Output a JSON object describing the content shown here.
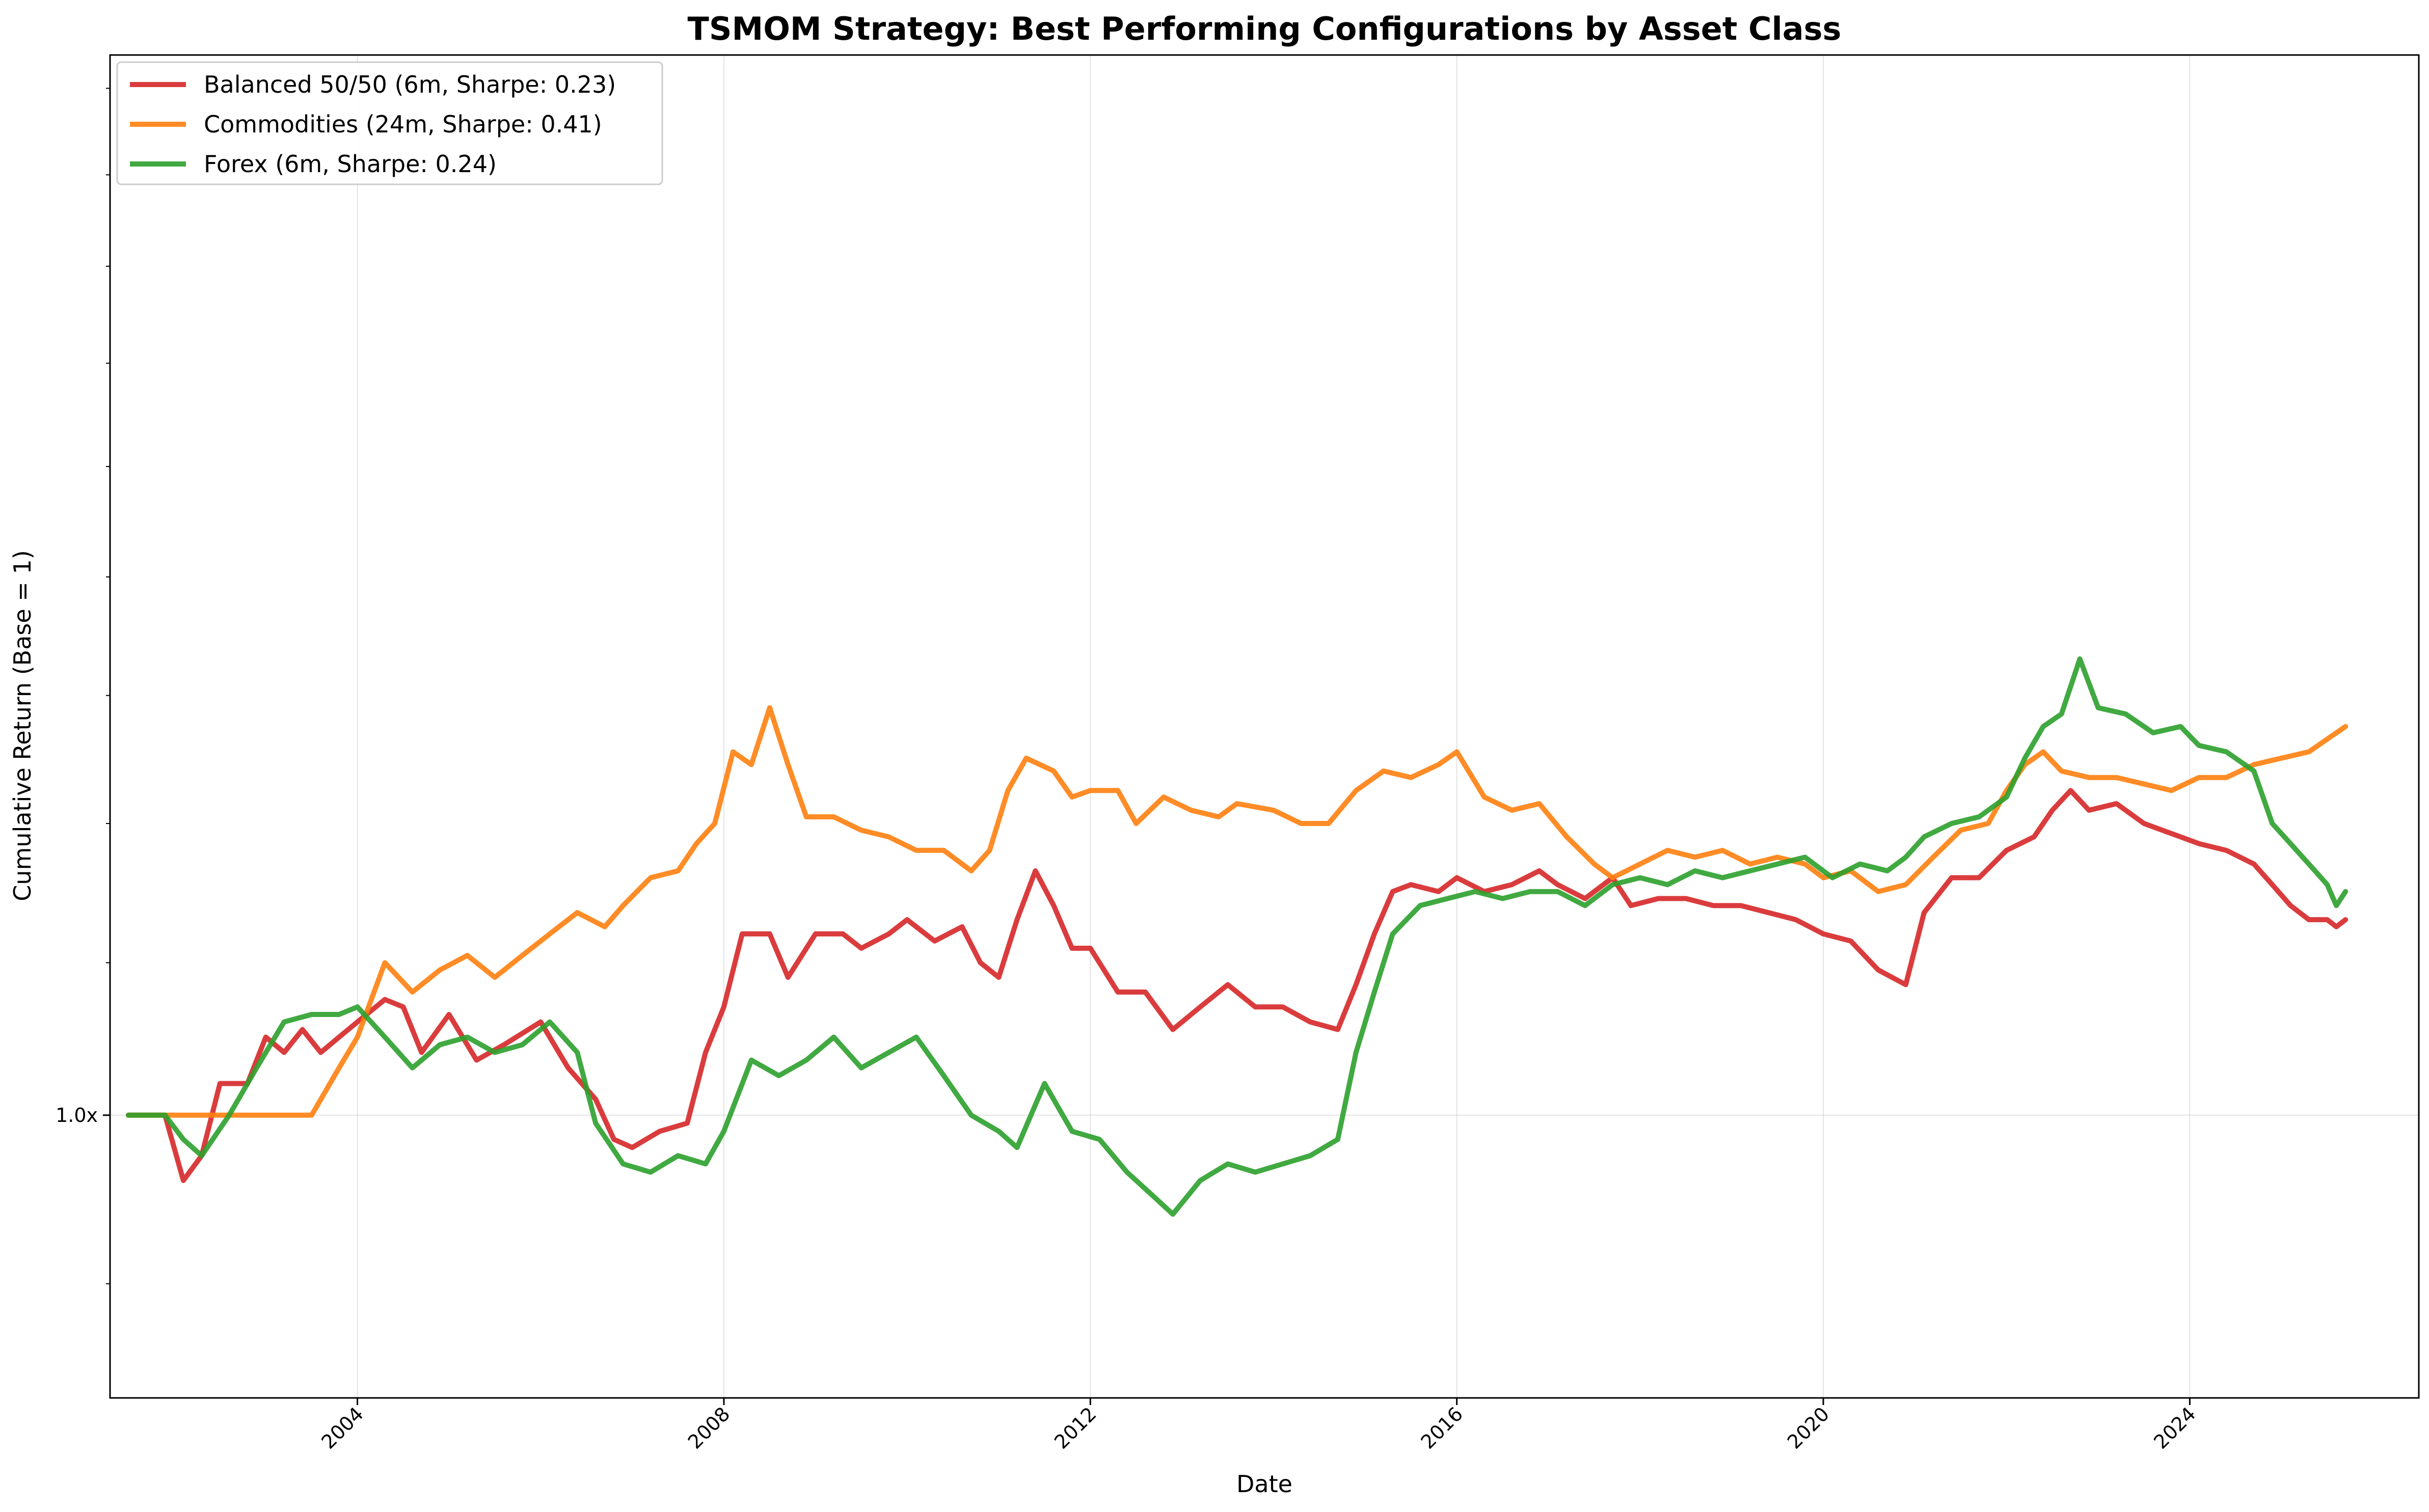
{
  "chart_data": {
    "type": "line",
    "title": "TSMOM Strategy: Best Performing Configurations by Asset Class",
    "xlabel": "Date",
    "ylabel": "Cumulative Return (Base = 1)",
    "y_scale": "log",
    "ylim": [
      0.838,
      1.94
    ],
    "xlim": [
      2001.3,
      2026.5
    ],
    "x_ticks": [
      2004,
      2008,
      2012,
      2016,
      2020,
      2024
    ],
    "x_tick_labels": [
      "2004",
      "2008",
      "2012",
      "2016",
      "2020",
      "2024"
    ],
    "y_tick_labels": [
      "1.0x"
    ],
    "grid": true,
    "legend_position": "top-left",
    "series": [
      {
        "name": "Balanced 50/50 (6m, Sharpe: 0.23)",
        "color": "#d62728",
        "points": [
          [
            2001.5,
            1.0
          ],
          [
            2001.9,
            1.0
          ],
          [
            2002.1,
            0.96
          ],
          [
            2002.3,
            0.975
          ],
          [
            2002.5,
            1.02
          ],
          [
            2002.8,
            1.02
          ],
          [
            2003.0,
            1.05
          ],
          [
            2003.2,
            1.04
          ],
          [
            2003.4,
            1.055
          ],
          [
            2003.6,
            1.04
          ],
          [
            2003.8,
            1.05
          ],
          [
            2004.0,
            1.06
          ],
          [
            2004.3,
            1.075
          ],
          [
            2004.5,
            1.07
          ],
          [
            2004.7,
            1.04
          ],
          [
            2005.0,
            1.065
          ],
          [
            2005.3,
            1.035
          ],
          [
            2005.6,
            1.045
          ],
          [
            2006.0,
            1.06
          ],
          [
            2006.3,
            1.03
          ],
          [
            2006.6,
            1.01
          ],
          [
            2006.8,
            0.985
          ],
          [
            2007.0,
            0.98
          ],
          [
            2007.3,
            0.99
          ],
          [
            2007.6,
            0.995
          ],
          [
            2007.8,
            1.04
          ],
          [
            2008.0,
            1.07
          ],
          [
            2008.2,
            1.12
          ],
          [
            2008.5,
            1.12
          ],
          [
            2008.7,
            1.09
          ],
          [
            2009.0,
            1.12
          ],
          [
            2009.3,
            1.12
          ],
          [
            2009.5,
            1.11
          ],
          [
            2009.8,
            1.12
          ],
          [
            2010.0,
            1.13
          ],
          [
            2010.3,
            1.115
          ],
          [
            2010.6,
            1.125
          ],
          [
            2010.8,
            1.1
          ],
          [
            2011.0,
            1.09
          ],
          [
            2011.2,
            1.13
          ],
          [
            2011.4,
            1.165
          ],
          [
            2011.6,
            1.14
          ],
          [
            2011.8,
            1.11
          ],
          [
            2012.0,
            1.11
          ],
          [
            2012.3,
            1.08
          ],
          [
            2012.6,
            1.08
          ],
          [
            2012.9,
            1.055
          ],
          [
            2013.2,
            1.07
          ],
          [
            2013.5,
            1.085
          ],
          [
            2013.8,
            1.07
          ],
          [
            2014.1,
            1.07
          ],
          [
            2014.4,
            1.06
          ],
          [
            2014.7,
            1.055
          ],
          [
            2014.9,
            1.085
          ],
          [
            2015.1,
            1.12
          ],
          [
            2015.3,
            1.15
          ],
          [
            2015.5,
            1.155
          ],
          [
            2015.8,
            1.15
          ],
          [
            2016.0,
            1.16
          ],
          [
            2016.3,
            1.15
          ],
          [
            2016.6,
            1.155
          ],
          [
            2016.9,
            1.165
          ],
          [
            2017.1,
            1.155
          ],
          [
            2017.4,
            1.145
          ],
          [
            2017.7,
            1.16
          ],
          [
            2017.9,
            1.14
          ],
          [
            2018.2,
            1.145
          ],
          [
            2018.5,
            1.145
          ],
          [
            2018.8,
            1.14
          ],
          [
            2019.1,
            1.14
          ],
          [
            2019.4,
            1.135
          ],
          [
            2019.7,
            1.13
          ],
          [
            2020.0,
            1.12
          ],
          [
            2020.3,
            1.115
          ],
          [
            2020.6,
            1.095
          ],
          [
            2020.9,
            1.085
          ],
          [
            2021.1,
            1.135
          ],
          [
            2021.4,
            1.16
          ],
          [
            2021.7,
            1.16
          ],
          [
            2022.0,
            1.18
          ],
          [
            2022.3,
            1.19
          ],
          [
            2022.5,
            1.21
          ],
          [
            2022.7,
            1.225
          ],
          [
            2022.9,
            1.21
          ],
          [
            2023.2,
            1.215
          ],
          [
            2023.5,
            1.2
          ],
          [
            2023.7,
            1.195
          ],
          [
            2023.9,
            1.19
          ],
          [
            2024.1,
            1.185
          ],
          [
            2024.4,
            1.18
          ],
          [
            2024.7,
            1.17
          ],
          [
            2024.9,
            1.155
          ],
          [
            2025.1,
            1.14
          ],
          [
            2025.3,
            1.13
          ],
          [
            2025.5,
            1.13
          ],
          [
            2025.6,
            1.125
          ],
          [
            2025.7,
            1.13
          ]
        ]
      },
      {
        "name": "Commodities (24m, Sharpe: 0.41)",
        "color": "#ff7f0e",
        "points": [
          [
            2001.5,
            1.0
          ],
          [
            2003.5,
            1.0
          ],
          [
            2003.8,
            1.03
          ],
          [
            2004.0,
            1.05
          ],
          [
            2004.3,
            1.1
          ],
          [
            2004.6,
            1.08
          ],
          [
            2004.9,
            1.095
          ],
          [
            2005.2,
            1.105
          ],
          [
            2005.5,
            1.09
          ],
          [
            2005.8,
            1.105
          ],
          [
            2006.1,
            1.12
          ],
          [
            2006.4,
            1.135
          ],
          [
            2006.7,
            1.125
          ],
          [
            2006.9,
            1.14
          ],
          [
            2007.2,
            1.16
          ],
          [
            2007.5,
            1.165
          ],
          [
            2007.7,
            1.185
          ],
          [
            2007.9,
            1.2
          ],
          [
            2008.1,
            1.255
          ],
          [
            2008.3,
            1.245
          ],
          [
            2008.5,
            1.29
          ],
          [
            2008.7,
            1.245
          ],
          [
            2008.9,
            1.205
          ],
          [
            2009.2,
            1.205
          ],
          [
            2009.5,
            1.195
          ],
          [
            2009.8,
            1.19
          ],
          [
            2010.1,
            1.18
          ],
          [
            2010.4,
            1.18
          ],
          [
            2010.7,
            1.165
          ],
          [
            2010.9,
            1.18
          ],
          [
            2011.1,
            1.225
          ],
          [
            2011.3,
            1.25
          ],
          [
            2011.6,
            1.24
          ],
          [
            2011.8,
            1.22
          ],
          [
            2012.0,
            1.225
          ],
          [
            2012.3,
            1.225
          ],
          [
            2012.5,
            1.2
          ],
          [
            2012.8,
            1.22
          ],
          [
            2013.1,
            1.21
          ],
          [
            2013.4,
            1.205
          ],
          [
            2013.6,
            1.215
          ],
          [
            2014.0,
            1.21
          ],
          [
            2014.3,
            1.2
          ],
          [
            2014.6,
            1.2
          ],
          [
            2014.9,
            1.225
          ],
          [
            2015.2,
            1.24
          ],
          [
            2015.5,
            1.235
          ],
          [
            2015.8,
            1.245
          ],
          [
            2016.0,
            1.255
          ],
          [
            2016.3,
            1.22
          ],
          [
            2016.6,
            1.21
          ],
          [
            2016.9,
            1.215
          ],
          [
            2017.2,
            1.19
          ],
          [
            2017.5,
            1.17
          ],
          [
            2017.7,
            1.16
          ],
          [
            2018.0,
            1.17
          ],
          [
            2018.3,
            1.18
          ],
          [
            2018.6,
            1.175
          ],
          [
            2018.9,
            1.18
          ],
          [
            2019.2,
            1.17
          ],
          [
            2019.5,
            1.175
          ],
          [
            2019.8,
            1.17
          ],
          [
            2020.0,
            1.16
          ],
          [
            2020.3,
            1.165
          ],
          [
            2020.6,
            1.15
          ],
          [
            2020.9,
            1.155
          ],
          [
            2021.2,
            1.175
          ],
          [
            2021.5,
            1.195
          ],
          [
            2021.8,
            1.2
          ],
          [
            2022.0,
            1.225
          ],
          [
            2022.2,
            1.245
          ],
          [
            2022.4,
            1.255
          ],
          [
            2022.6,
            1.24
          ],
          [
            2022.9,
            1.235
          ],
          [
            2023.2,
            1.235
          ],
          [
            2023.5,
            1.23
          ],
          [
            2023.8,
            1.225
          ],
          [
            2024.1,
            1.235
          ],
          [
            2024.4,
            1.235
          ],
          [
            2024.7,
            1.245
          ],
          [
            2025.0,
            1.25
          ],
          [
            2025.3,
            1.255
          ],
          [
            2025.5,
            1.265
          ],
          [
            2025.7,
            1.275
          ]
        ]
      },
      {
        "name": "Forex (6m, Sharpe: 0.24)",
        "color": "#2ca02c",
        "points": [
          [
            2001.5,
            1.0
          ],
          [
            2001.9,
            1.0
          ],
          [
            2002.1,
            0.985
          ],
          [
            2002.3,
            0.975
          ],
          [
            2002.6,
            1.0
          ],
          [
            2002.9,
            1.03
          ],
          [
            2003.2,
            1.06
          ],
          [
            2003.5,
            1.065
          ],
          [
            2003.8,
            1.065
          ],
          [
            2004.0,
            1.07
          ],
          [
            2004.3,
            1.05
          ],
          [
            2004.6,
            1.03
          ],
          [
            2004.9,
            1.045
          ],
          [
            2005.2,
            1.05
          ],
          [
            2005.5,
            1.04
          ],
          [
            2005.8,
            1.045
          ],
          [
            2006.1,
            1.06
          ],
          [
            2006.4,
            1.04
          ],
          [
            2006.6,
            0.995
          ],
          [
            2006.9,
            0.97
          ],
          [
            2007.2,
            0.965
          ],
          [
            2007.5,
            0.975
          ],
          [
            2007.8,
            0.97
          ],
          [
            2008.0,
            0.99
          ],
          [
            2008.3,
            1.035
          ],
          [
            2008.6,
            1.025
          ],
          [
            2008.9,
            1.035
          ],
          [
            2009.2,
            1.05
          ],
          [
            2009.5,
            1.03
          ],
          [
            2009.8,
            1.04
          ],
          [
            2010.1,
            1.05
          ],
          [
            2010.4,
            1.025
          ],
          [
            2010.7,
            1.0
          ],
          [
            2011.0,
            0.99
          ],
          [
            2011.2,
            0.98
          ],
          [
            2011.5,
            1.02
          ],
          [
            2011.8,
            0.99
          ],
          [
            2012.1,
            0.985
          ],
          [
            2012.4,
            0.965
          ],
          [
            2012.7,
            0.95
          ],
          [
            2012.9,
            0.94
          ],
          [
            2013.2,
            0.96
          ],
          [
            2013.5,
            0.97
          ],
          [
            2013.8,
            0.965
          ],
          [
            2014.1,
            0.97
          ],
          [
            2014.4,
            0.975
          ],
          [
            2014.7,
            0.985
          ],
          [
            2014.9,
            1.04
          ],
          [
            2015.1,
            1.08
          ],
          [
            2015.3,
            1.12
          ],
          [
            2015.6,
            1.14
          ],
          [
            2015.9,
            1.145
          ],
          [
            2016.2,
            1.15
          ],
          [
            2016.5,
            1.145
          ],
          [
            2016.8,
            1.15
          ],
          [
            2017.1,
            1.15
          ],
          [
            2017.4,
            1.14
          ],
          [
            2017.7,
            1.155
          ],
          [
            2018.0,
            1.16
          ],
          [
            2018.3,
            1.155
          ],
          [
            2018.6,
            1.165
          ],
          [
            2018.9,
            1.16
          ],
          [
            2019.2,
            1.165
          ],
          [
            2019.5,
            1.17
          ],
          [
            2019.8,
            1.175
          ],
          [
            2020.1,
            1.16
          ],
          [
            2020.4,
            1.17
          ],
          [
            2020.7,
            1.165
          ],
          [
            2020.9,
            1.175
          ],
          [
            2021.1,
            1.19
          ],
          [
            2021.4,
            1.2
          ],
          [
            2021.7,
            1.205
          ],
          [
            2022.0,
            1.22
          ],
          [
            2022.2,
            1.25
          ],
          [
            2022.4,
            1.275
          ],
          [
            2022.6,
            1.285
          ],
          [
            2022.8,
            1.33
          ],
          [
            2023.0,
            1.29
          ],
          [
            2023.3,
            1.285
          ],
          [
            2023.6,
            1.27
          ],
          [
            2023.9,
            1.275
          ],
          [
            2024.1,
            1.26
          ],
          [
            2024.4,
            1.255
          ],
          [
            2024.7,
            1.24
          ],
          [
            2024.9,
            1.2
          ],
          [
            2025.1,
            1.185
          ],
          [
            2025.3,
            1.17
          ],
          [
            2025.5,
            1.155
          ],
          [
            2025.6,
            1.14
          ],
          [
            2025.7,
            1.15
          ]
        ]
      }
    ]
  }
}
